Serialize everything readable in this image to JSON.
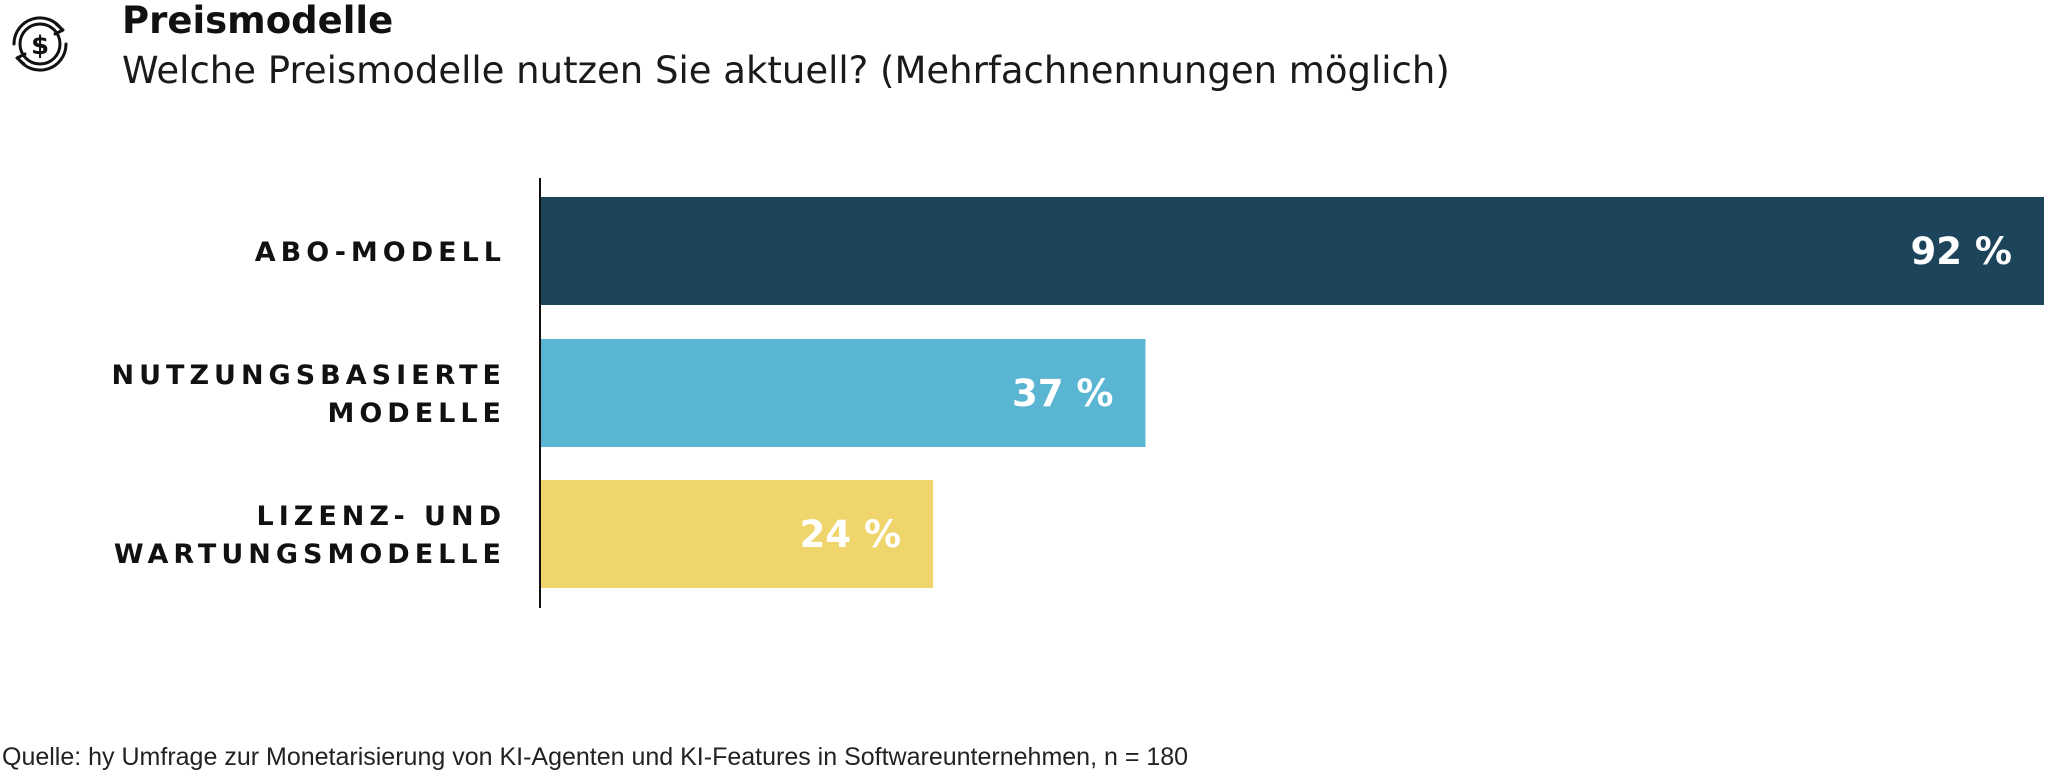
{
  "header": {
    "icon": "dollar-coin-cycle-icon",
    "title": "Preismodelle",
    "subtitle": "Welche Preismodelle nutzen Sie aktuell? (Mehrfachnennungen möglich)"
  },
  "chart_data": {
    "type": "bar",
    "orientation": "horizontal",
    "title": "Preismodelle",
    "subtitle": "Welche Preismodelle nutzen Sie aktuell? (Mehrfachnennungen möglich)",
    "categories": [
      [
        "ABO-MODELL"
      ],
      [
        "NUTZUNGSBASIERTE",
        "MODELLE"
      ],
      [
        "LIZENZ- UND",
        "WARTUNGSMODELLE"
      ]
    ],
    "values": [
      92,
      37,
      24
    ],
    "value_labels": [
      "92 %",
      "37 %",
      "24 %"
    ],
    "colors": [
      "#1c455c",
      "#5ab5d3",
      "#f0d56c"
    ],
    "unit": "%",
    "xlim": [
      0,
      92
    ],
    "grid": false,
    "legend": false
  },
  "footer": {
    "source": "Quelle: hy Umfrage zur Monetarisierung von KI-Agenten und KI-Features in Softwareunternehmen, n = 180"
  }
}
